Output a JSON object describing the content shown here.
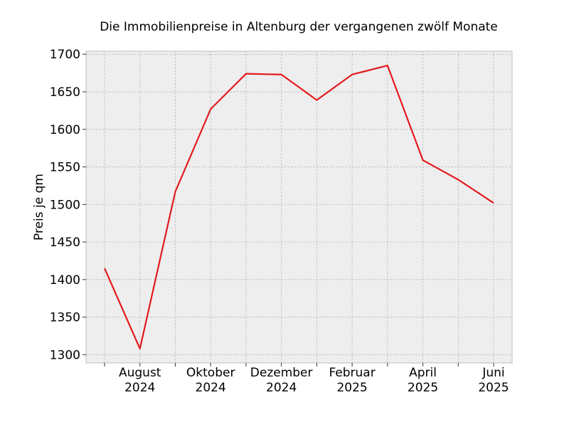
{
  "chart_data": {
    "type": "line",
    "title": "Die Immobilienpreise in Altenburg der vergangenen zwölf Monate",
    "xlabel": "",
    "ylabel": "Preis je qm",
    "x": [
      "2024-07",
      "2024-08",
      "2024-09",
      "2024-10",
      "2024-11",
      "2024-12",
      "2025-01",
      "2025-02",
      "2025-03",
      "2025-04",
      "2025-05",
      "2025-06"
    ],
    "series": [
      {
        "values": [
          1415,
          1308,
          1517,
          1627,
          1674,
          1673,
          1639,
          1673,
          1685,
          1559,
          1533,
          1502
        ],
        "color": "#e41a1c"
      }
    ],
    "ylim": [
      1289,
      1704
    ],
    "yticks": [
      1300,
      1350,
      1400,
      1450,
      1500,
      1550,
      1600,
      1650,
      1700
    ],
    "xtick_labels": [
      {
        "x": "2024-08",
        "line1": "August",
        "line2": "2024"
      },
      {
        "x": "2024-10",
        "line1": "Oktober",
        "line2": "2024"
      },
      {
        "x": "2024-12",
        "line1": "Dezember",
        "line2": "2024"
      },
      {
        "x": "2025-02",
        "line1": "Februar",
        "line2": "2025"
      },
      {
        "x": "2025-04",
        "line1": "April",
        "line2": "2025"
      },
      {
        "x": "2025-06",
        "line1": "Juni",
        "line2": "2025"
      }
    ],
    "grid": true,
    "legend": "none",
    "colors": {
      "plot_background": "#eeeeee",
      "grid": "#b0b0b0",
      "frame": "#bcbcbc"
    }
  }
}
